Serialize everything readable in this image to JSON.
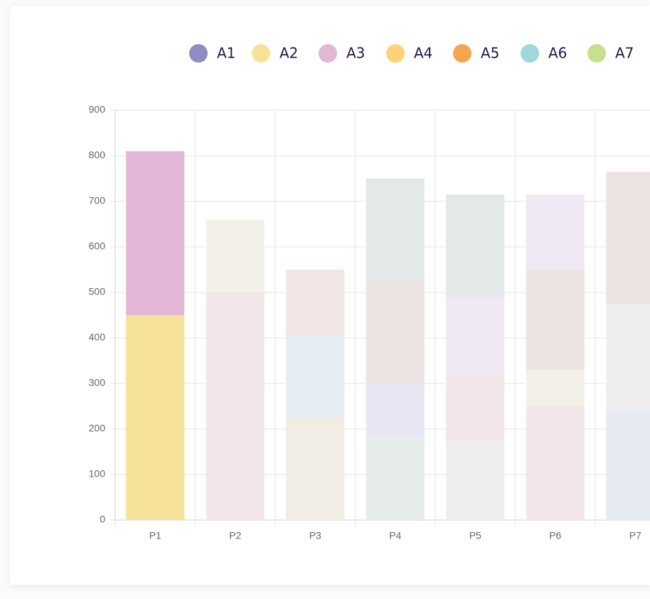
{
  "chart_data": {
    "type": "stacked-bar",
    "categories": [
      "P1",
      "P2",
      "P3",
      "P4",
      "P5",
      "P6",
      "P7"
    ],
    "series": [
      {
        "name": "A1",
        "color": "#8e8cc4",
        "values": [
          null,
          null,
          null,
          null,
          null,
          null,
          null
        ]
      },
      {
        "name": "A2",
        "color": "#f7e29a",
        "values": [
          450,
          null,
          null,
          null,
          null,
          null,
          null
        ]
      },
      {
        "name": "A3",
        "color": "#e2b7d5",
        "values": [
          360,
          null,
          null,
          null,
          null,
          null,
          null
        ]
      },
      {
        "name": "A4",
        "color": "#fdd279",
        "values": [
          null,
          null,
          null,
          null,
          null,
          null,
          null
        ]
      },
      {
        "name": "A5",
        "color": "#f6a54f",
        "values": [
          null,
          null,
          null,
          null,
          null,
          null,
          null
        ]
      },
      {
        "name": "A6",
        "color": "#9fd8db",
        "values": [
          null,
          null,
          null,
          null,
          null,
          null,
          null
        ]
      },
      {
        "name": "A7",
        "color": "#c8e08d",
        "values": [
          null,
          null,
          null,
          null,
          null,
          null,
          null
        ]
      },
      {
        "colors": [
          null,
          "#f2e6e8",
          "#f1ece4",
          "#e5ecea",
          "#eeeeee",
          "#f2e6e8",
          "#e6ebf3"
        ],
        "values": [
          null,
          500,
          225,
          180,
          175,
          250,
          240
        ]
      },
      {
        "colors": [
          null,
          "#f3f0e7",
          "#e6ecf4",
          "#e9e6f3",
          "#f2e6e8",
          "#f3f0e7",
          "#eeeeee"
        ],
        "values": [
          null,
          160,
          180,
          122,
          145,
          80,
          235
        ]
      },
      {
        "colors": [
          null,
          null,
          "#f1e5e6",
          "#ede3e3",
          "#f0e8f2",
          "#ede3e3",
          "#ede3e3"
        ],
        "values": [
          null,
          null,
          145,
          223,
          170,
          220,
          290
        ]
      },
      {
        "colors": [
          null,
          null,
          null,
          "#e3e9e8",
          "#e3e9e8",
          "#f0e8f2",
          null
        ],
        "values": [
          null,
          null,
          null,
          225,
          225,
          165,
          null
        ]
      }
    ],
    "ylim": [
      0,
      900
    ],
    "yticks": [
      0,
      100,
      200,
      300,
      400,
      500,
      600,
      700,
      800,
      900
    ],
    "grid": true
  }
}
